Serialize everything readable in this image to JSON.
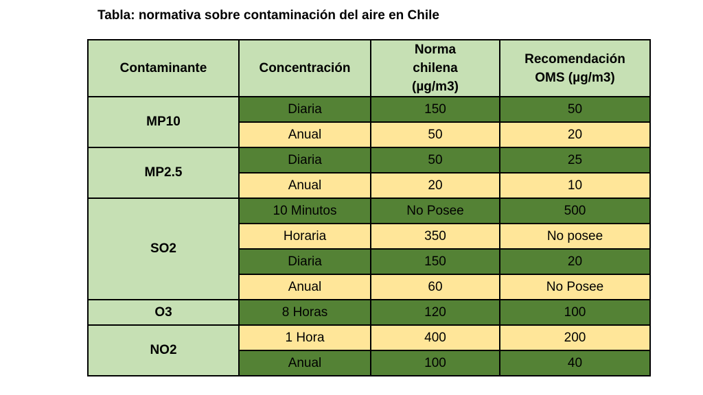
{
  "title": "Tabla: normativa sobre contaminación del aire en Chile",
  "headers": [
    "Contaminante",
    "Concentración",
    "Norma chilena (µg/m3)",
    "Recomendación OMS (µg/m3)"
  ],
  "colors": {
    "header": "#c6e0b4",
    "dark_row": "#548235",
    "light_row": "#ffe699"
  },
  "groups": [
    {
      "pollutant": "MP10",
      "rows": [
        {
          "concentracion": "Diaria",
          "chile": "150",
          "oms": "50"
        },
        {
          "concentracion": "Anual",
          "chile": "50",
          "oms": "20"
        }
      ]
    },
    {
      "pollutant": "MP2.5",
      "rows": [
        {
          "concentracion": "Diaria",
          "chile": "50",
          "oms": "25"
        },
        {
          "concentracion": "Anual",
          "chile": "20",
          "oms": "10"
        }
      ]
    },
    {
      "pollutant": "SO2",
      "rows": [
        {
          "concentracion": "10 Minutos",
          "chile": "No Posee",
          "oms": "500"
        },
        {
          "concentracion": "Horaria",
          "chile": "350",
          "oms": "No posee"
        },
        {
          "concentracion": "Diaria",
          "chile": "150",
          "oms": "20"
        },
        {
          "concentracion": "Anual",
          "chile": "60",
          "oms": "No Posee"
        }
      ]
    },
    {
      "pollutant": "O3",
      "rows": [
        {
          "concentracion": "8 Horas",
          "chile": "120",
          "oms": "100"
        }
      ]
    },
    {
      "pollutant": "NO2",
      "rows": [
        {
          "concentracion": "1 Hora",
          "chile": "400",
          "oms": "200"
        },
        {
          "concentracion": "Anual",
          "chile": "100",
          "oms": "40"
        }
      ]
    }
  ]
}
